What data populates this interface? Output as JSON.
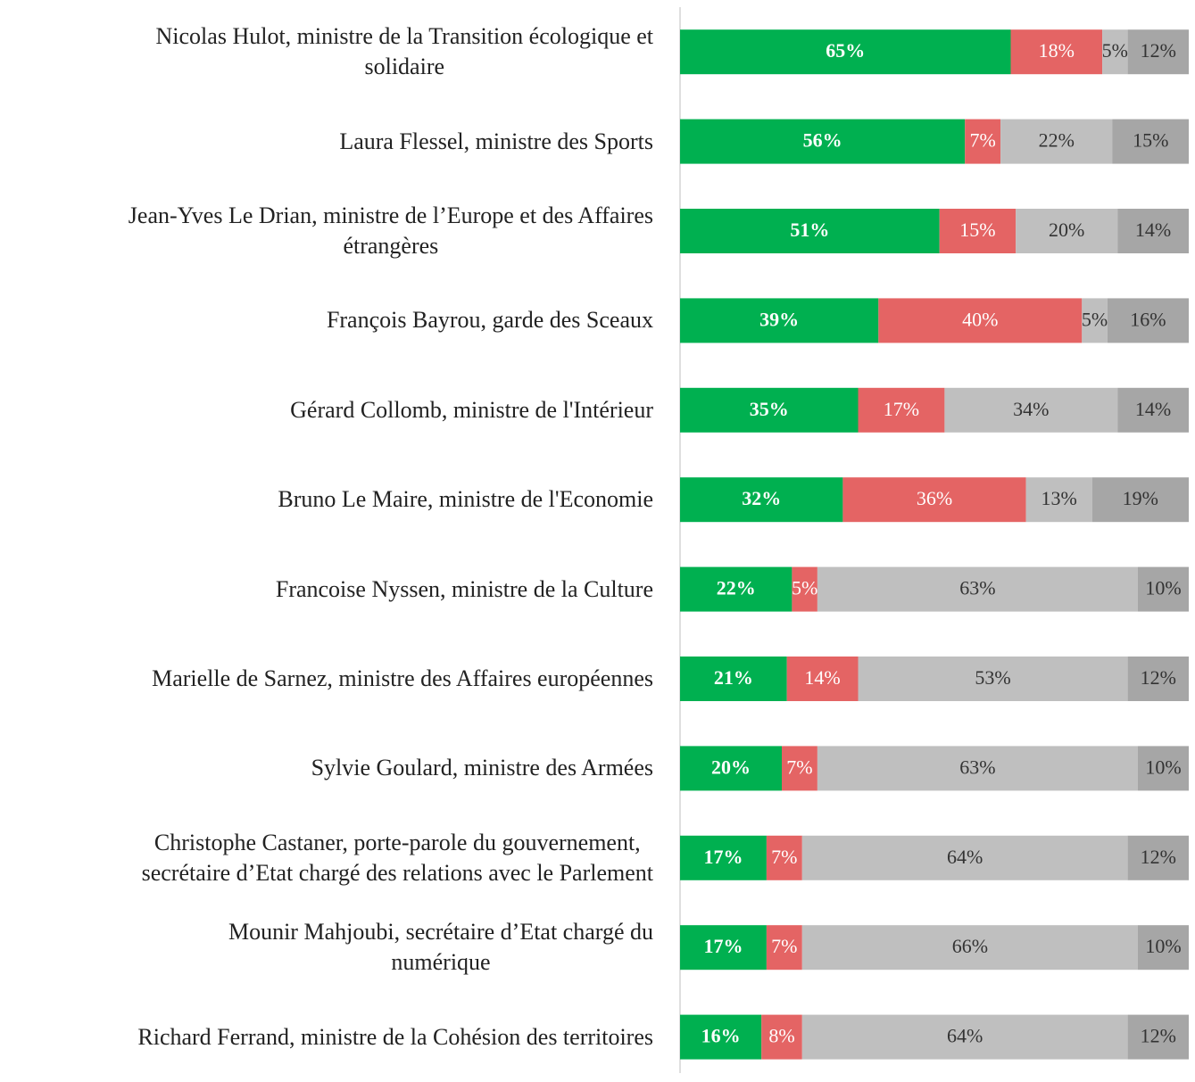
{
  "chart_data": {
    "type": "bar",
    "orientation": "horizontal",
    "stacked": true,
    "xlim": [
      0,
      100
    ],
    "categories": [
      "Nicolas Hulot,  ministre de la Transition écologique et\nsolidaire",
      "Laura Flessel, ministre des Sports",
      "Jean-Yves Le Drian, ministre de l’Europe et des Affaires\nétrangères",
      "François Bayrou, garde des Sceaux",
      "Gérard Collomb, ministre de l'Intérieur",
      "Bruno Le Maire, ministre de l'Economie",
      "Francoise Nyssen, ministre de la Culture",
      "Marielle de Sarnez, ministre des Affaires européennes",
      "Sylvie Goulard, ministre des Armées",
      "Christophe Castaner, porte-parole du gouvernement,\nsecrétaire d’Etat chargé des relations avec le Parlement",
      "Mounir Mahjoubi, secrétaire d’Etat chargé du\nnumérique",
      "Richard Ferrand, ministre de la Cohésion des territoires"
    ],
    "series": [
      {
        "color": "#00b050",
        "label_color": "#ffffff",
        "label_bold": true,
        "values": [
          65,
          56,
          51,
          39,
          35,
          32,
          22,
          21,
          20,
          17,
          17,
          16
        ],
        "value_labels": [
          "65%",
          "56%",
          "51%",
          "39%",
          "35%",
          "32%",
          "22%",
          "21%",
          "20%",
          "17%",
          "17%",
          "16%"
        ]
      },
      {
        "color": "#e46464",
        "label_color": "#ffffff",
        "label_bold": false,
        "values": [
          18,
          7,
          15,
          40,
          17,
          36,
          5,
          14,
          7,
          7,
          7,
          8
        ],
        "value_labels": [
          "18%",
          "7%",
          "15%",
          "40%",
          "17%",
          "36%",
          "5%",
          "14%",
          "7%",
          "7%",
          "7%",
          "8%"
        ]
      },
      {
        "color": "#bfbfbf",
        "label_color": "#333333",
        "label_bold": false,
        "values": [
          5,
          22,
          20,
          5,
          34,
          13,
          63,
          53,
          63,
          64,
          66,
          64
        ],
        "value_labels": [
          "5%",
          "22%",
          "20%",
          "5%",
          "34%",
          "13%",
          "63%",
          "53%",
          "63%",
          "64%",
          "66%",
          "64%"
        ]
      },
      {
        "color": "#a6a6a6",
        "label_color": "#333333",
        "label_bold": false,
        "values": [
          12,
          15,
          14,
          16,
          14,
          19,
          10,
          12,
          10,
          12,
          10,
          12
        ],
        "value_labels": [
          "12%",
          "15%",
          "14%",
          "16%",
          "14%",
          "19%",
          "10%",
          "12%",
          "10%",
          "12%",
          "10%",
          "12%"
        ]
      }
    ]
  }
}
